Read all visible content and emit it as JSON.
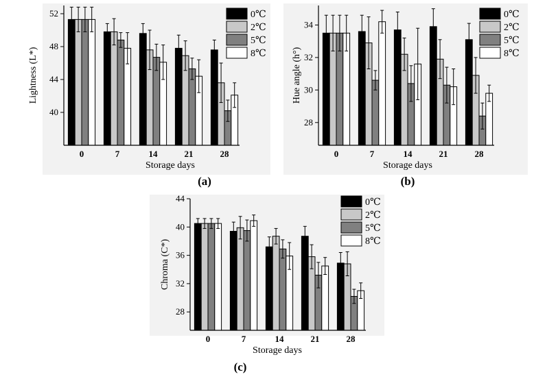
{
  "chart_data": [
    {
      "type": "bar",
      "panel_label": "(a)",
      "xlabel": "Storage days",
      "ylabel": "Lightness (L*)",
      "categories": [
        "0",
        "7",
        "14",
        "21",
        "28"
      ],
      "ylim": [
        36,
        53
      ],
      "yticks": [
        40,
        44,
        48,
        52
      ],
      "legend_position": "top-right",
      "series": [
        {
          "name": "0℃",
          "color": "#000000",
          "values": [
            51.3,
            49.8,
            49.6,
            47.8,
            47.6
          ],
          "errors": [
            1.5,
            1.0,
            1.2,
            1.6,
            1.2
          ]
        },
        {
          "name": "2℃",
          "color": "#c8c8c8",
          "values": [
            51.3,
            49.8,
            47.6,
            46.9,
            43.6
          ],
          "errors": [
            1.5,
            1.6,
            2.4,
            1.8,
            2.4
          ]
        },
        {
          "name": "5℃",
          "color": "#808080",
          "values": [
            51.3,
            48.8,
            46.7,
            45.3,
            40.2
          ],
          "errors": [
            1.5,
            0.9,
            1.6,
            1.3,
            1.3
          ]
        },
        {
          "name": "8℃",
          "color": "#ffffff",
          "values": [
            51.3,
            47.8,
            46.1,
            44.4,
            42.1
          ],
          "errors": [
            1.5,
            1.9,
            2.1,
            2.0,
            1.5
          ]
        }
      ]
    },
    {
      "type": "bar",
      "panel_label": "(b)",
      "xlabel": "Storage days",
      "ylabel": "Hue angle (h°)",
      "categories": [
        "0",
        "7",
        "14",
        "21",
        "28"
      ],
      "ylim": [
        26.6,
        35.2
      ],
      "yticks": [
        28,
        30,
        32,
        34
      ],
      "legend_position": "top-right",
      "series": [
        {
          "name": "0℃",
          "color": "#000000",
          "values": [
            33.5,
            33.6,
            33.7,
            33.9,
            33.1
          ],
          "errors": [
            1.1,
            1.0,
            1.1,
            1.1,
            1.0
          ]
        },
        {
          "name": "2℃",
          "color": "#c8c8c8",
          "values": [
            33.5,
            32.9,
            32.2,
            31.9,
            30.9
          ],
          "errors": [
            1.1,
            1.6,
            1.0,
            1.2,
            1.1
          ]
        },
        {
          "name": "5℃",
          "color": "#808080",
          "values": [
            33.5,
            30.6,
            30.4,
            30.3,
            28.4
          ],
          "errors": [
            1.1,
            0.6,
            1.1,
            1.1,
            0.8
          ]
        },
        {
          "name": "8℃",
          "color": "#ffffff",
          "values": [
            33.5,
            34.2,
            31.6,
            30.2,
            29.8
          ],
          "errors": [
            1.1,
            0.7,
            2.2,
            1.1,
            0.5
          ]
        }
      ]
    },
    {
      "type": "bar",
      "panel_label": "(c)",
      "xlabel": "Storage days",
      "ylabel": "Chroma (C*)",
      "categories": [
        "0",
        "7",
        "14",
        "21",
        "28"
      ],
      "ylim": [
        25.4,
        44
      ],
      "yticks": [
        28,
        32,
        36,
        40,
        44
      ],
      "legend_position": "top-right",
      "series": [
        {
          "name": "0℃",
          "color": "#000000",
          "values": [
            40.5,
            39.4,
            37.2,
            38.7,
            34.9
          ],
          "errors": [
            0.7,
            1.3,
            1.4,
            1.4,
            1.5
          ]
        },
        {
          "name": "2℃",
          "color": "#c8c8c8",
          "values": [
            40.5,
            39.9,
            38.7,
            35.8,
            34.8
          ],
          "errors": [
            0.7,
            1.6,
            1.1,
            1.7,
            1.7
          ]
        },
        {
          "name": "5℃",
          "color": "#808080",
          "values": [
            40.5,
            39.5,
            36.9,
            33.2,
            30.2
          ],
          "errors": [
            0.7,
            1.5,
            1.3,
            1.8,
            1.0
          ]
        },
        {
          "name": "8℃",
          "color": "#ffffff",
          "values": [
            40.5,
            40.9,
            35.9,
            34.5,
            31.0
          ],
          "errors": [
            0.7,
            0.8,
            1.9,
            1.2,
            1.1
          ]
        }
      ]
    }
  ]
}
